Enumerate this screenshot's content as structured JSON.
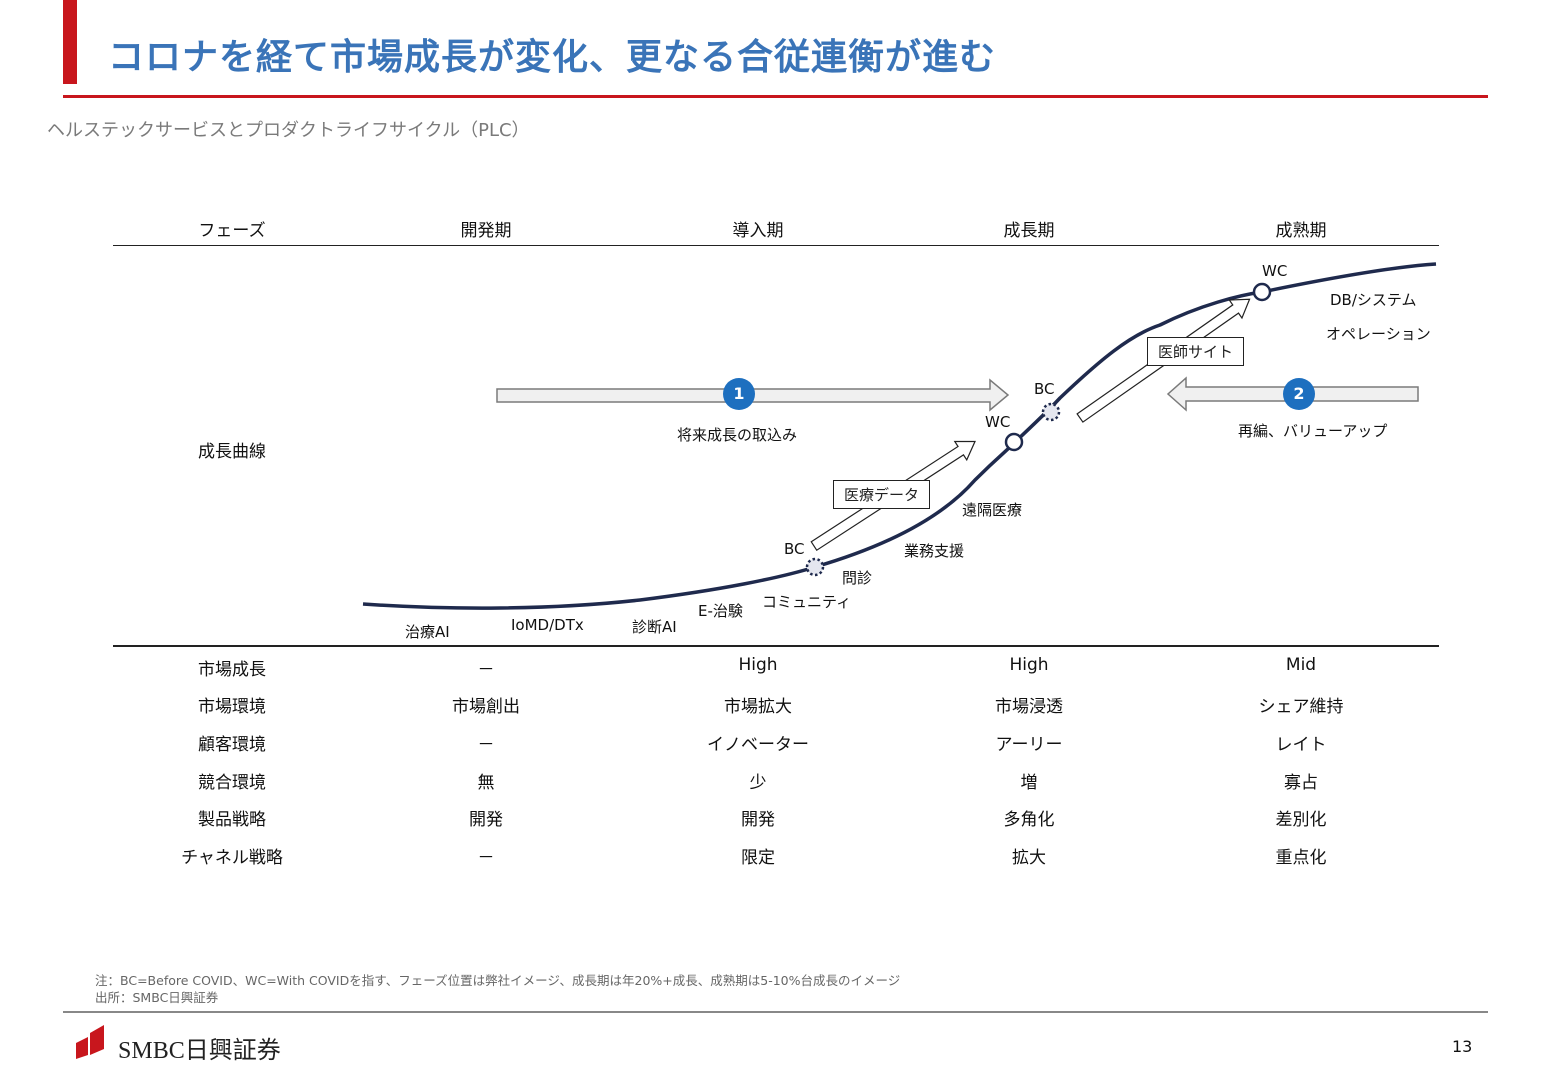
{
  "header": {
    "title": "コロナを経て市場成長が変化、更なる合従連衡が進む",
    "subtitle": "ヘルステックサービスとプロダクトライフサイクル（PLC）"
  },
  "phases": {
    "row_label": "フェーズ",
    "items": [
      "開発期",
      "導入期",
      "成長期",
      "成熟期"
    ]
  },
  "curve": {
    "row_label": "成長曲線",
    "labels": {
      "chiryo_ai": "治療AI",
      "iomd": "IoMD/DTx",
      "shindan_ai": "診断AI",
      "e_chiryo": "E-治験",
      "community": "コミュニティ",
      "monshin": "問診",
      "gyomu": "業務支援",
      "enkaku": "遠隔医療",
      "db_system": "DB/システム",
      "operation": "オペレーション",
      "bc_1": "BC",
      "wc_1": "WC",
      "bc_2": "BC",
      "wc_2": "WC"
    },
    "boxes": {
      "iryo_data": "医療データ",
      "ishi_site": "医師サイト"
    },
    "arrows": {
      "badge_1": "1",
      "caption_1": "将来成長の取込み",
      "badge_2": "2",
      "caption_2": "再編、バリューアップ"
    }
  },
  "table": {
    "rows": [
      {
        "label": "市場成長",
        "values": [
          "－",
          "High",
          "High",
          "Mid"
        ]
      },
      {
        "label": "市場環境",
        "values": [
          "市場創出",
          "市場拡大",
          "市場浸透",
          "シェア維持"
        ]
      },
      {
        "label": "顧客環境",
        "values": [
          "－",
          "イノベーター",
          "アーリー",
          "レイト"
        ]
      },
      {
        "label": "競合環境",
        "values": [
          "無",
          "少",
          "増",
          "寡占"
        ]
      },
      {
        "label": "製品戦略",
        "values": [
          "開発",
          "開発",
          "多角化",
          "差別化"
        ]
      },
      {
        "label": "チャネル戦略",
        "values": [
          "－",
          "限定",
          "拡大",
          "重点化"
        ]
      }
    ]
  },
  "footer": {
    "note": "注：BC=Before COVID、WC=With COVIDを指す、フェーズ位置は弊社イメージ、成長期は年20%+成長、成熟期は5-10%台成長のイメージ",
    "source": "出所：SMBC日興証券",
    "logo_text": "SMBC日興証券",
    "page_number": "13"
  },
  "colors": {
    "accent_red": "#c8161d",
    "title_blue": "#3a74b8",
    "curve_navy": "#1f2a4d",
    "badge_blue": "#1d6fbf"
  }
}
